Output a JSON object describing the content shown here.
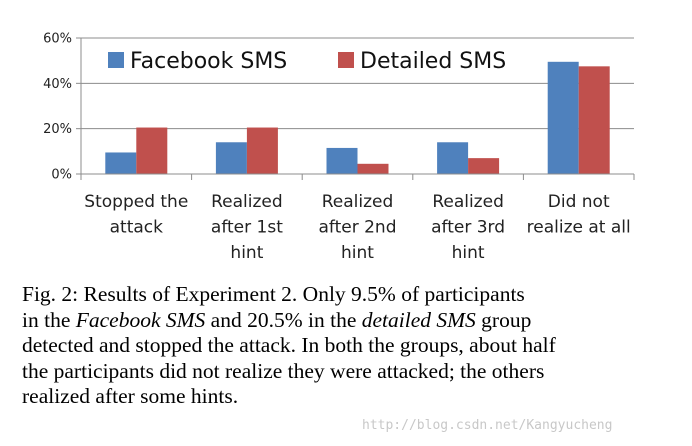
{
  "chart_data": {
    "type": "bar",
    "categories": [
      [
        "Stopped the",
        "attack"
      ],
      [
        "Realized",
        "after 1st",
        "hint"
      ],
      [
        "Realized",
        "after 2nd",
        "hint"
      ],
      [
        "Realized",
        "after 3rd",
        "hint"
      ],
      [
        "Did not",
        "realize at all"
      ]
    ],
    "series": [
      {
        "name": "Facebook SMS",
        "color": "#4f81bd",
        "values": [
          9.5,
          14,
          11.5,
          14,
          49.5
        ]
      },
      {
        "name": "Detailed SMS",
        "color": "#c0504d",
        "values": [
          20.5,
          20.5,
          4.5,
          7,
          47.5
        ]
      }
    ],
    "y_ticks": [
      "0%",
      "20%",
      "40%",
      "60%"
    ],
    "y_tick_values": [
      0,
      20,
      40,
      60
    ],
    "ylim": [
      0,
      60
    ],
    "grid": true,
    "legend_position": "top-left"
  },
  "caption": {
    "lines": [
      "Fig. 2: Results of Experiment 2. Only 9.5% of participants",
      "in the <i>Facebook SMS</i> and 20.5% in the <i>detailed SMS</i> group",
      "detected and stopped the attack. In both the groups, about half",
      "the participants did not realize they were attacked; the others",
      "realized after some hints."
    ]
  },
  "watermark": "http://blog.csdn.net/Kangyucheng"
}
